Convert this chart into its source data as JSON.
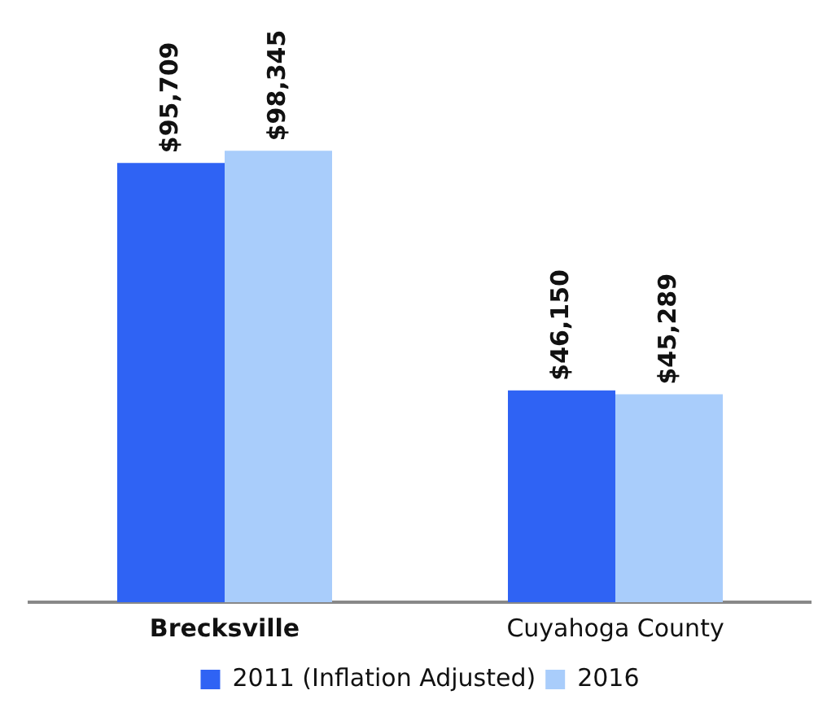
{
  "chart_data": {
    "type": "bar",
    "categories": [
      "Brecksville",
      "Cuyahoga County"
    ],
    "series": [
      {
        "name": "2011 (Inflation Adjusted)",
        "color": "#2f63f4",
        "values": [
          95709,
          46150
        ],
        "value_labels": [
          "$95,709",
          "$46,150"
        ]
      },
      {
        "name": "2016",
        "color": "#a9cdfb",
        "values": [
          98345,
          45289
        ],
        "value_labels": [
          "$98,345",
          "$45,289"
        ]
      }
    ],
    "grid": false,
    "legend": "bottom"
  }
}
